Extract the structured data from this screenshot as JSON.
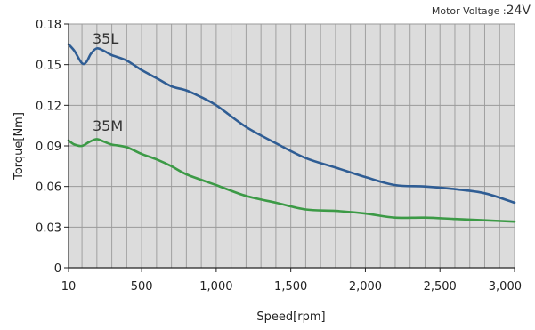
{
  "chart_data": {
    "type": "line",
    "note_label": "Motor Voltage :",
    "note_value": "24V",
    "xlabel": "Speed[rpm]",
    "ylabel": "Torque[Nm]",
    "xlim": [
      10,
      3000
    ],
    "ylim": [
      0,
      0.18
    ],
    "grid": true,
    "x_ticks": [
      10,
      500,
      1000,
      1500,
      2000,
      2500,
      3000
    ],
    "x_tick_labels": [
      "10",
      "500",
      "1,000",
      "1,500",
      "2,000",
      "2,500",
      "3,000"
    ],
    "y_ticks": [
      0,
      0.03,
      0.06,
      0.09,
      0.12,
      0.15,
      0.18
    ],
    "y_tick_labels": [
      "0",
      "0.03",
      "0.06",
      "0.09",
      "0.12",
      "0.15",
      "0.18"
    ],
    "series": [
      {
        "name": "35L",
        "color": "#2f5d94",
        "x": [
          10,
          50,
          100,
          130,
          160,
          200,
          250,
          300,
          400,
          500,
          600,
          700,
          800,
          900,
          1000,
          1200,
          1400,
          1600,
          1800,
          2000,
          2200,
          2400,
          2600,
          2800,
          3000
        ],
        "y": [
          0.165,
          0.16,
          0.151,
          0.152,
          0.158,
          0.162,
          0.16,
          0.157,
          0.153,
          0.146,
          0.14,
          0.134,
          0.131,
          0.126,
          0.12,
          0.104,
          0.092,
          0.081,
          0.074,
          0.067,
          0.061,
          0.06,
          0.058,
          0.055,
          0.048
        ]
      },
      {
        "name": "35M",
        "color": "#3c9a46",
        "x": [
          10,
          50,
          100,
          150,
          200,
          250,
          300,
          400,
          500,
          600,
          700,
          800,
          1000,
          1200,
          1400,
          1600,
          1800,
          2000,
          2200,
          2400,
          2600,
          2800,
          3000
        ],
        "y": [
          0.094,
          0.091,
          0.09,
          0.093,
          0.095,
          0.093,
          0.091,
          0.089,
          0.084,
          0.08,
          0.075,
          0.069,
          0.061,
          0.053,
          0.048,
          0.043,
          0.042,
          0.04,
          0.037,
          0.037,
          0.036,
          0.035,
          0.034
        ]
      }
    ]
  }
}
